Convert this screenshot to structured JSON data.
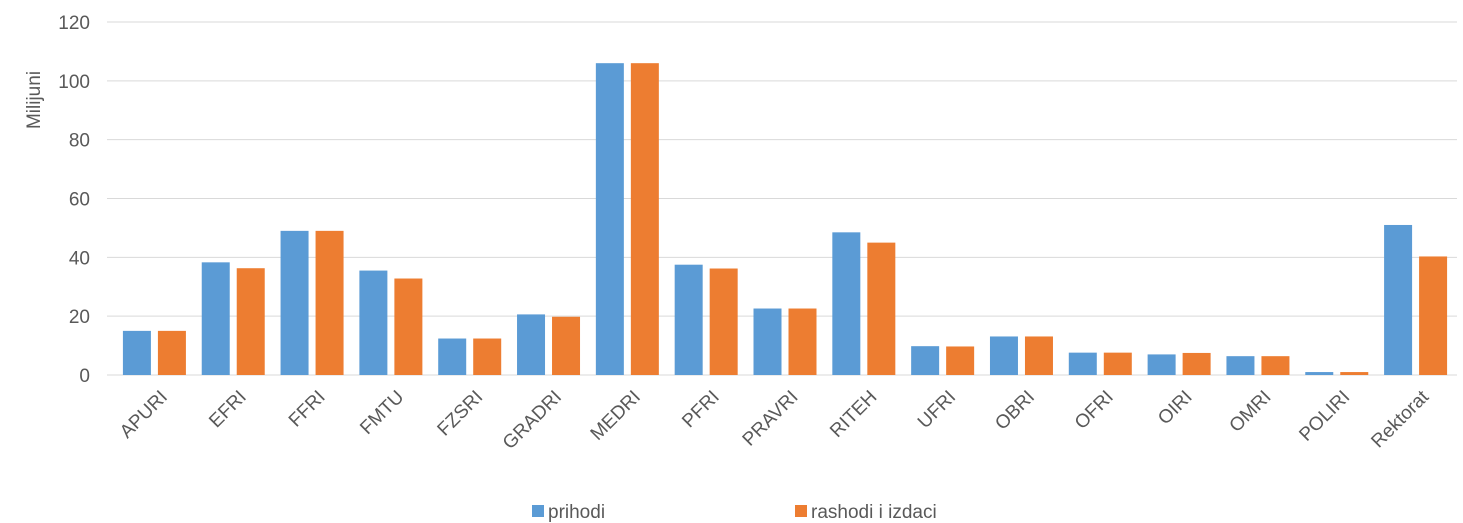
{
  "chart_data": {
    "type": "bar",
    "title": "",
    "xlabel": "",
    "ylabel": "Milijuni",
    "ylim": [
      0,
      120
    ],
    "yticks": [
      0,
      20,
      40,
      60,
      80,
      100,
      120
    ],
    "grid": true,
    "legend_position": "bottom",
    "categories": [
      "APURI",
      "EFRI",
      "FFRI",
      "FMTU",
      "FZSRI",
      "GRADRI",
      "MEDRI",
      "PFRI",
      "PRAVRI",
      "RITEH",
      "UFRI",
      "OBRI",
      "OFRI",
      "OIRI",
      "OMRI",
      "POLIRI",
      "Rektorat"
    ],
    "series": [
      {
        "name": "prihodi",
        "color": "#5B9BD5",
        "values": [
          15.0,
          38.3,
          49.0,
          35.5,
          12.4,
          20.6,
          106.0,
          37.5,
          22.6,
          48.5,
          9.8,
          13.1,
          7.6,
          7.0,
          6.4,
          1.0,
          51.0
        ]
      },
      {
        "name": "rashodi i izdaci",
        "color": "#ED7D31",
        "values": [
          15.0,
          36.3,
          49.0,
          32.8,
          12.4,
          19.8,
          106.0,
          36.2,
          22.6,
          45.0,
          9.7,
          13.1,
          7.6,
          7.5,
          6.4,
          1.0,
          40.3
        ]
      }
    ]
  }
}
